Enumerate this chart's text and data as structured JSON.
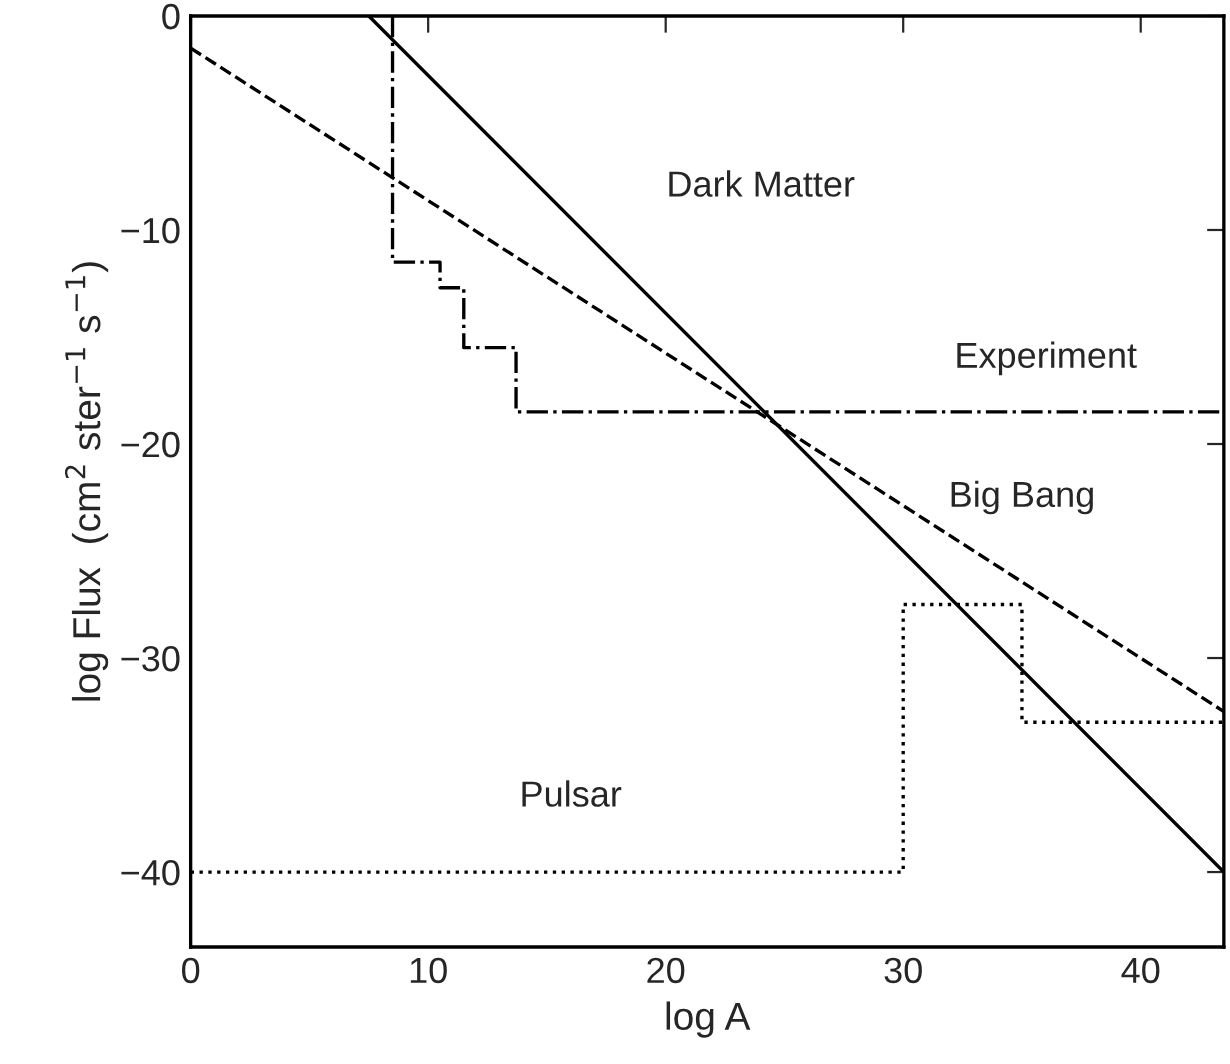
{
  "chart_data": {
    "type": "line",
    "xlabel": "log A",
    "ylabel": "log Flux  (cm$^{2}$ ster$^{−1}$ s$^{−1}$)",
    "xlim": [
      0,
      43.5
    ],
    "ylim": [
      -43.5,
      0
    ],
    "xticks": [
      0,
      10,
      20,
      30,
      40
    ],
    "yticks": [
      {
        "value": 0,
        "label": "0"
      },
      {
        "value": -10,
        "label": "−10"
      },
      {
        "value": -20,
        "label": "−20"
      },
      {
        "value": -30,
        "label": "−30"
      },
      {
        "value": -40,
        "label": "−40"
      }
    ],
    "grid": false,
    "legend": false,
    "marker": "none",
    "series": [
      {
        "name": "Dark Matter",
        "color": "#000000",
        "line_style": "solid",
        "x": [
          7.5,
          43.5
        ],
        "values": [
          0,
          -40
        ]
      },
      {
        "name": "Experiment",
        "color": "#000000",
        "line_style": "dashdot",
        "x": [
          8.5,
          8.5,
          10.5,
          10.5,
          11.5,
          11.5,
          13.7,
          13.7,
          43.5
        ],
        "values": [
          0,
          -11.5,
          -11.5,
          -12.7,
          -12.7,
          -15.5,
          -15.5,
          -18.5,
          -18.5
        ]
      },
      {
        "name": "Big Bang",
        "color": "#000000",
        "line_style": "dashed",
        "x": [
          0,
          43.5
        ],
        "values": [
          -1.5,
          -32.5
        ]
      },
      {
        "name": "Pulsar",
        "color": "#000000",
        "line_style": "dotted",
        "x": [
          0,
          30,
          30,
          35,
          35,
          43.5
        ],
        "values": [
          -40,
          -40,
          -27.5,
          -27.5,
          -33,
          -33
        ]
      }
    ]
  }
}
